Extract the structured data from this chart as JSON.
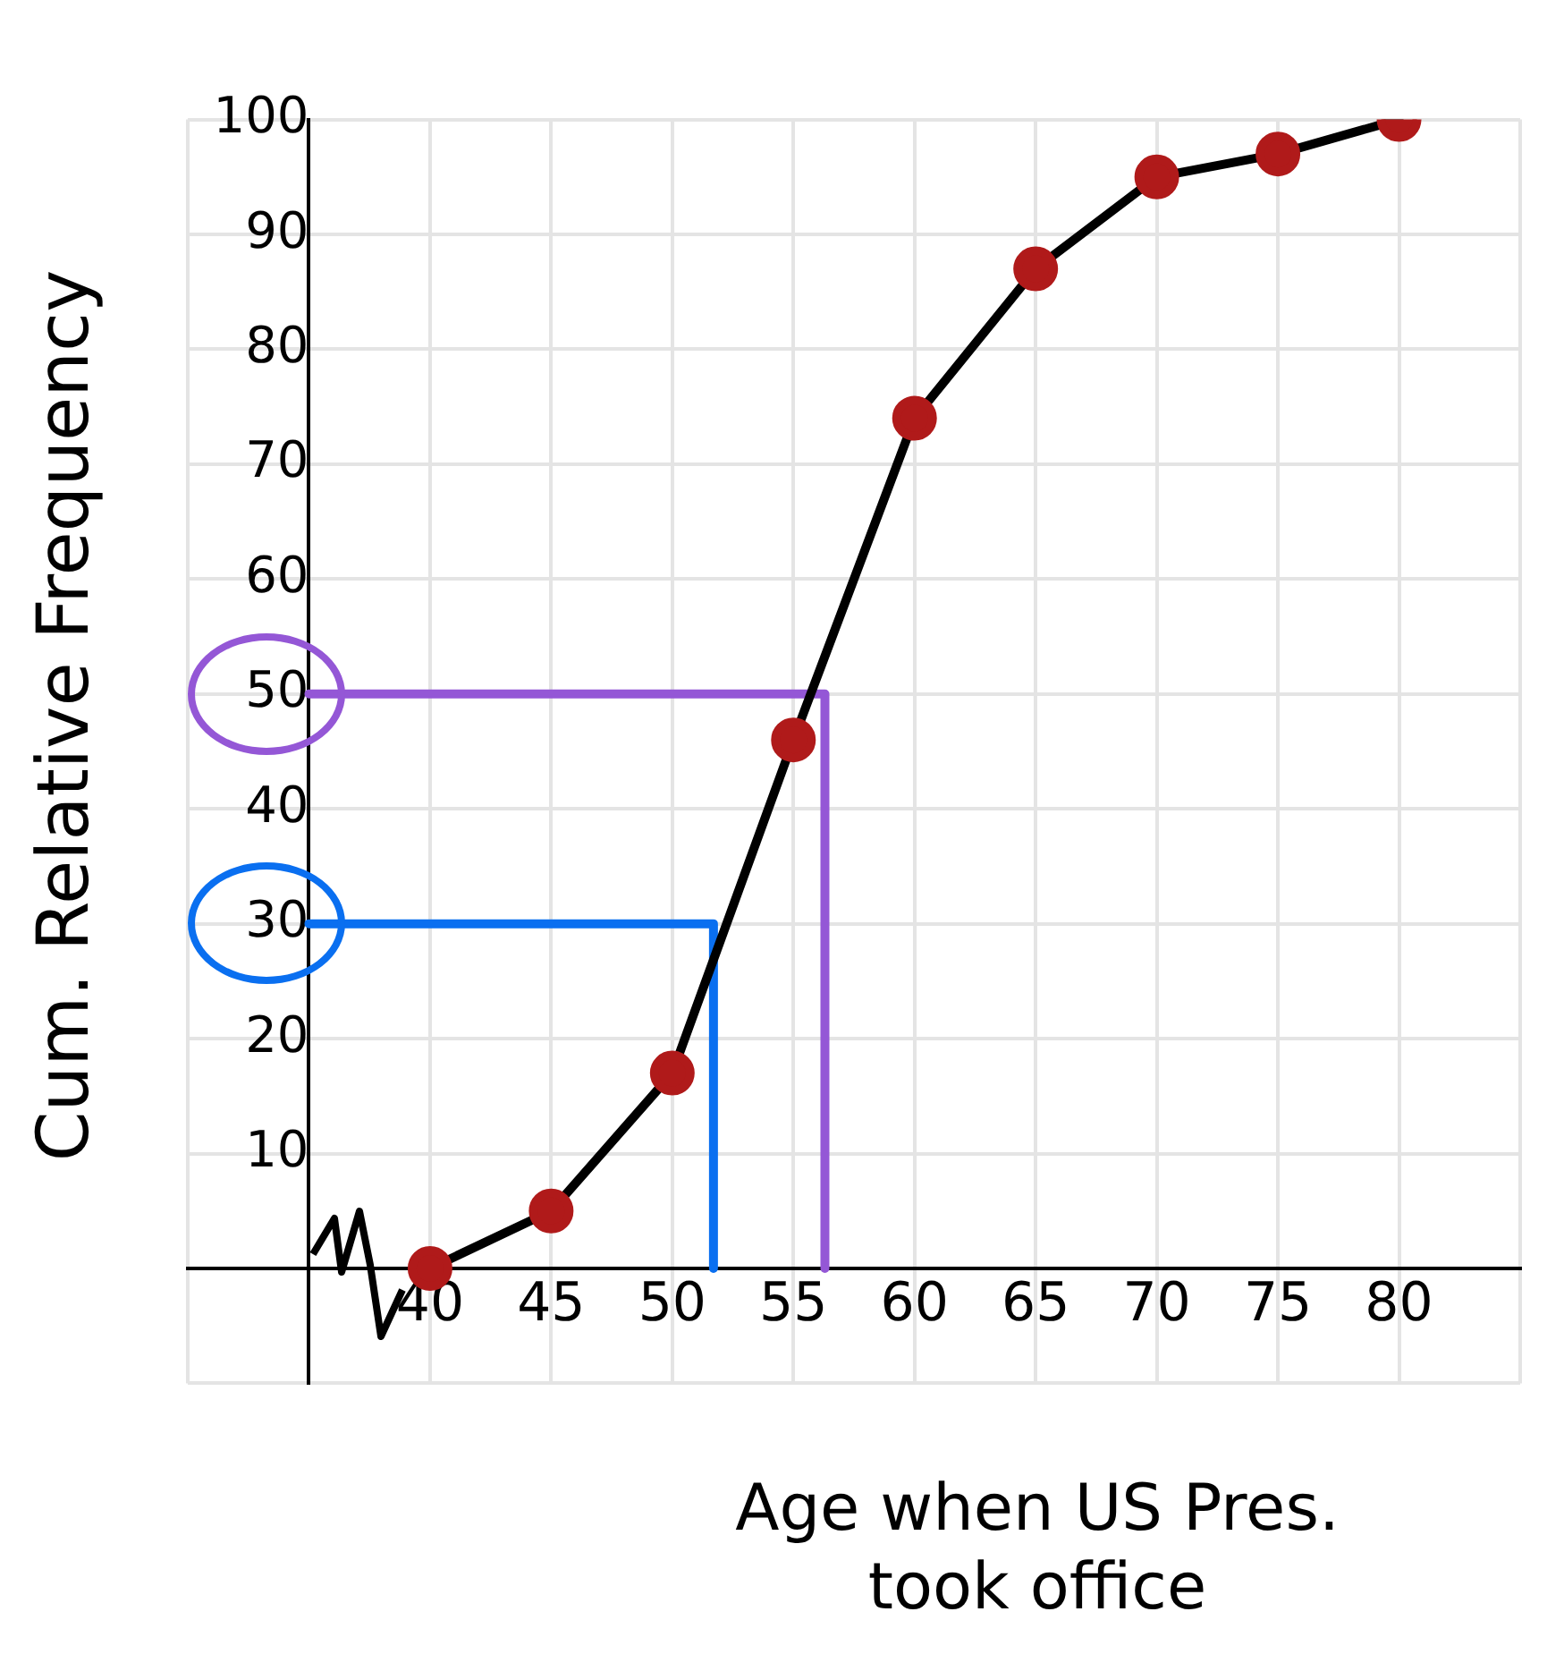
{
  "chart_data": {
    "type": "line",
    "xlabel": "Age when US Pres.\ntook office",
    "ylabel": "Cum. Relative Frequency",
    "xlim": [
      30,
      85
    ],
    "xticks": [
      {
        "value": 30,
        "label": null
      },
      {
        "value": 35,
        "label": null
      },
      40,
      45,
      50,
      55,
      60,
      65,
      70,
      75,
      80,
      {
        "value": 85,
        "label": null
      }
    ],
    "ylim": [
      -10,
      100
    ],
    "yticks": [
      {
        "value": -10,
        "label": null
      },
      {
        "value": 0,
        "label": null
      },
      10,
      20,
      30,
      40,
      50,
      60,
      70,
      80,
      90,
      100
    ],
    "grid": true,
    "legend": false,
    "line_style": "solid",
    "series": [
      {
        "color": "#000000",
        "colors": [
          "#b01a1a",
          "#b01a1a",
          "#b01a1a",
          "#b01a1a",
          "#b01a1a",
          "#b01a1a",
          "#b01a1a",
          "#b01a1a",
          "#b01a1a"
        ],
        "marker": "circle",
        "x": [
          40,
          45,
          50,
          55,
          60,
          65,
          70,
          75,
          80
        ],
        "values": [
          0,
          5,
          17,
          46,
          74,
          87,
          95,
          97,
          100
        ]
      },
      {
        "color": "#0a6ff0",
        "marker": "none",
        "x": [
          35,
          51.7,
          51.7
        ],
        "values": [
          30,
          30,
          0
        ]
      },
      {
        "color": "#9457d6",
        "marker": "none",
        "x": [
          35,
          56.3,
          56.3
        ],
        "values": [
          50,
          50,
          0
        ]
      }
    ]
  }
}
